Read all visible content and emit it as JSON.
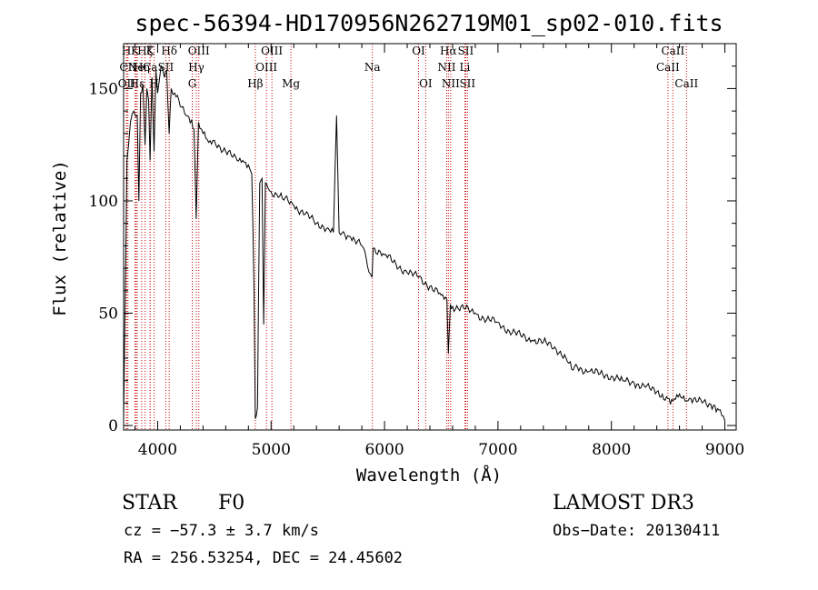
{
  "chart_data": {
    "type": "line",
    "title": "spec-56394-HD170956N262719M01_sp02-010.fits",
    "xlabel": "Wavelength (Å)",
    "ylabel": "Flux (relative)",
    "xlim": [
      3700,
      9100
    ],
    "ylim": [
      -2,
      170
    ],
    "xticks": [
      4000,
      5000,
      6000,
      7000,
      8000,
      9000
    ],
    "xtick_labels": [
      "4000",
      "5000",
      "6000",
      "7000",
      "8000",
      "9000"
    ],
    "yticks": [
      0,
      50,
      100,
      150
    ],
    "ytick_labels": [
      "0",
      "50",
      "100",
      "150"
    ],
    "grid": false,
    "series": [
      {
        "name": "spectrum",
        "x": [
          3700,
          3710,
          3730,
          3760,
          3790,
          3820,
          3835,
          3850,
          3870,
          3889,
          3905,
          3920,
          3933,
          3950,
          3968,
          3985,
          4000,
          4030,
          4060,
          4080,
          4101,
          4120,
          4150,
          4200,
          4250,
          4300,
          4320,
          4340,
          4360,
          4400,
          4450,
          4500,
          4550,
          4600,
          4650,
          4700,
          4750,
          4800,
          4830,
          4850,
          4861,
          4880,
          4900,
          4920,
          4935,
          4950,
          4970,
          5000,
          5050,
          5100,
          5150,
          5200,
          5300,
          5400,
          5500,
          5550,
          5577,
          5600,
          5650,
          5700,
          5800,
          5890,
          5900,
          6000,
          6100,
          6200,
          6300,
          6400,
          6500,
          6550,
          6563,
          6580,
          6600,
          6700,
          6800,
          6900,
          7000,
          7100,
          7200,
          7300,
          7400,
          7500,
          7600,
          7650,
          7700,
          7800,
          7900,
          8000,
          8100,
          8200,
          8300,
          8400,
          8498,
          8542,
          8600,
          8662,
          8700,
          8800,
          8900,
          8960,
          9000
        ],
        "y": [
          2,
          40,
          118,
          135,
          140,
          138,
          100,
          148,
          152,
          125,
          150,
          145,
          118,
          155,
          122,
          158,
          148,
          160,
          155,
          158,
          130,
          150,
          148,
          142,
          138,
          136,
          132,
          92,
          135,
          130,
          126,
          127,
          124,
          122,
          120,
          118,
          118,
          116,
          112,
          60,
          3,
          8,
          108,
          110,
          45,
          108,
          106,
          104,
          103,
          101,
          100,
          98,
          94,
          90,
          88,
          86,
          138,
          86,
          85,
          84,
          80,
          66,
          79,
          76,
          72,
          68,
          66,
          62,
          58,
          56,
          32,
          54,
          53,
          52,
          50,
          47,
          46,
          42,
          40,
          38,
          37,
          35,
          30,
          25,
          26,
          24,
          23,
          22,
          20,
          19,
          17,
          15,
          12,
          11,
          14,
          11,
          12,
          10,
          9,
          7,
          2
        ]
      }
    ],
    "spectral_lines": [
      {
        "name": "H",
        "x": 3725,
        "row": 0
      },
      {
        "name": "CII",
        "x": 3738,
        "row": 1
      },
      {
        "name": "OII",
        "x": 3727,
        "row": 2
      },
      {
        "name": "K",
        "x": 3800,
        "row": 0
      },
      {
        "name": "Ne",
        "x": 3810,
        "row": 1
      },
      {
        "name": "Hε",
        "x": 3820,
        "row": 2
      },
      {
        "name": "Hζ",
        "x": 3889,
        "row": 0
      },
      {
        "name": "Hη",
        "x": 3860,
        "row": 1
      },
      {
        "name": "Ca",
        "x": 3934,
        "row": 1
      },
      {
        "name": "K",
        "x": 3934,
        "row": 0
      },
      {
        "name": "H",
        "x": 3969,
        "row": 2
      },
      {
        "name": "Hδ",
        "x": 4102,
        "row": 0
      },
      {
        "name": "SII",
        "x": 4072,
        "row": 1
      },
      {
        "name": "OIII",
        "x": 4363,
        "row": 0
      },
      {
        "name": "Hγ",
        "x": 4341,
        "row": 1
      },
      {
        "name": "G",
        "x": 4305,
        "row": 2
      },
      {
        "name": "Hβ",
        "x": 4861,
        "row": 2
      },
      {
        "name": "OIII",
        "x": 4959,
        "row": 1
      },
      {
        "name": "OIII",
        "x": 5007,
        "row": 0
      },
      {
        "name": "Mg",
        "x": 5175,
        "row": 2
      },
      {
        "name": "Na",
        "x": 5893,
        "row": 1
      },
      {
        "name": "OI",
        "x": 6300,
        "row": 0
      },
      {
        "name": "OI",
        "x": 6363,
        "row": 2
      },
      {
        "name": "NII",
        "x": 6548,
        "row": 1
      },
      {
        "name": "Hα",
        "x": 6563,
        "row": 0
      },
      {
        "name": "NII",
        "x": 6583,
        "row": 2
      },
      {
        "name": "Li",
        "x": 6708,
        "row": 1
      },
      {
        "name": "SII",
        "x": 6716,
        "row": 0
      },
      {
        "name": "SII",
        "x": 6731,
        "row": 2
      },
      {
        "name": "CaII",
        "x": 8498,
        "row": 1
      },
      {
        "name": "CaII",
        "x": 8542,
        "row": 0
      },
      {
        "name": "CaII",
        "x": 8662,
        "row": 2
      }
    ]
  },
  "info": {
    "object_class": "STAR",
    "subclass": "F0",
    "survey": "LAMOST DR3",
    "redshift": "cz = −57.3 ± 3.7 km/s",
    "obs_date": "Obs−Date: 20130411",
    "coords": "RA = 256.53254, DEC =  24.45602"
  },
  "colors": {
    "spectrum": "#000000",
    "line_markers": "#cc0000",
    "axes": "#000000",
    "background": "#ffffff"
  }
}
